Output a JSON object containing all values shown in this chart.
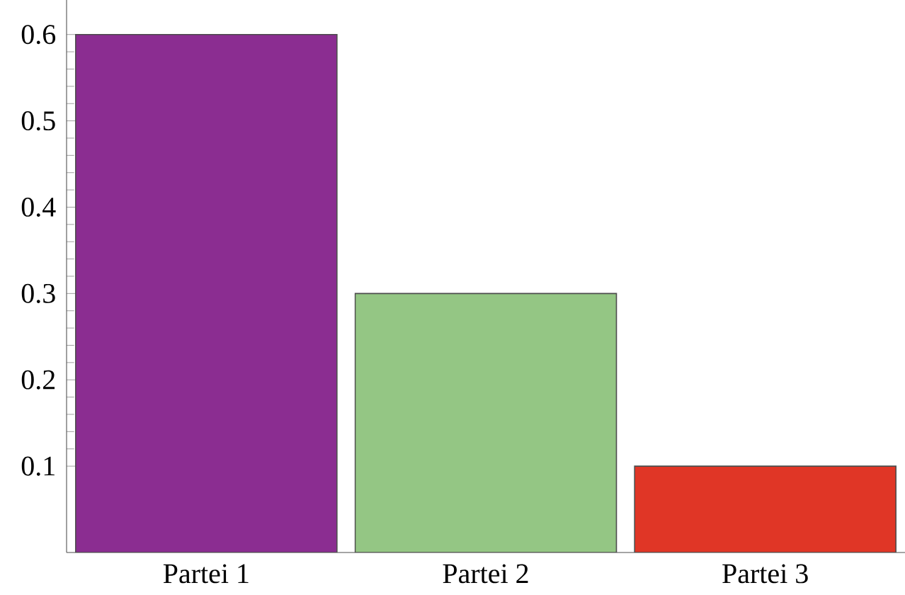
{
  "chart_data": {
    "type": "bar",
    "categories": [
      "Partei 1",
      "Partei 2",
      "Partei 3"
    ],
    "values": [
      0.6,
      0.3,
      0.1
    ],
    "colors": [
      "#8b2d91",
      "#94c684",
      "#e03626"
    ],
    "ylim": [
      0,
      0.64
    ],
    "yticks": [
      0.1,
      0.2,
      0.3,
      0.4,
      0.5,
      0.6
    ]
  }
}
